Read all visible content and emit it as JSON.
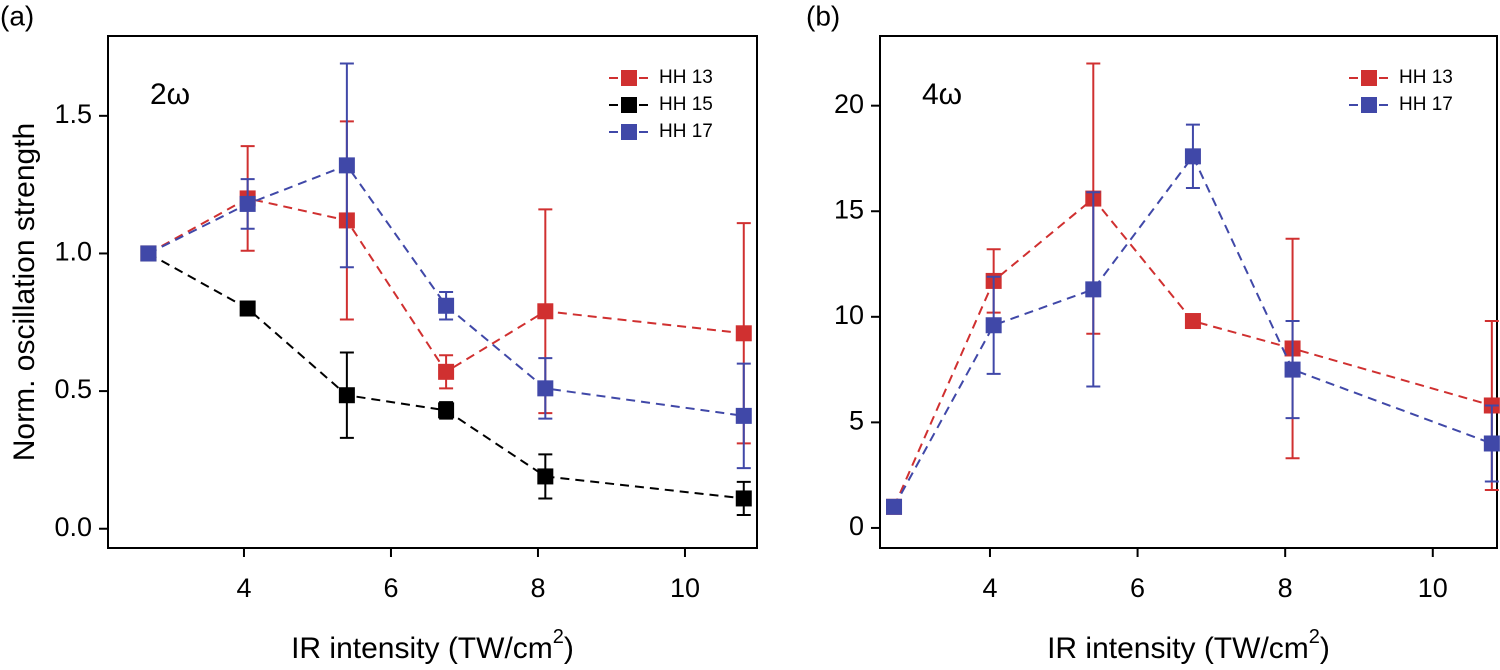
{
  "chart_data": [
    {
      "type": "line",
      "panel_label": "(a)",
      "annotation": "2ω",
      "ylabel": "Norm. oscillation strength",
      "xlabel": [
        "IR intensity (TW/cm",
        "2",
        ")"
      ],
      "x": [
        2.7,
        4.05,
        5.4,
        6.75,
        8.1,
        10.8
      ],
      "series": [
        {
          "name": "HH 13",
          "color": "#d03030",
          "values": [
            1.0,
            1.2,
            1.12,
            0.57,
            0.79,
            0.71
          ],
          "errors": [
            0,
            0.19,
            0.36,
            0.06,
            0.37,
            0.4
          ]
        },
        {
          "name": "HH 15",
          "color": "#000000",
          "values": [
            1.0,
            0.8,
            0.485,
            0.43,
            0.19,
            0.11
          ],
          "errors": [
            0,
            0,
            0.155,
            0.03,
            0.08,
            0.06
          ]
        },
        {
          "name": "HH 17",
          "color": "#4048a8",
          "values": [
            1.0,
            1.18,
            1.32,
            0.81,
            0.51,
            0.41
          ],
          "errors": [
            0,
            0.09,
            0.37,
            0.05,
            0.11,
            0.19
          ]
        }
      ],
      "xlim": [
        2.15,
        10.98
      ],
      "ylim": [
        -0.07,
        1.79
      ],
      "xticks": [
        4,
        6,
        8,
        10
      ],
      "yticks": [
        {
          "value": 0,
          "label": "0.0"
        },
        0.5,
        {
          "value": 1,
          "label": "1.0"
        },
        1.5
      ],
      "legend": "top right"
    },
    {
      "type": "line",
      "panel_label": "(b)",
      "annotation": "4ω",
      "xlabel": [
        "IR intensity (TW/cm",
        "2",
        ")"
      ],
      "x": [
        2.7,
        4.05,
        5.4,
        6.75,
        8.1,
        10.8
      ],
      "series": [
        {
          "name": "HH 13",
          "color": "#d03030",
          "values": [
            1.0,
            11.7,
            15.6,
            9.8,
            8.5,
            5.8
          ],
          "errors": [
            0,
            1.5,
            6.4,
            0.3,
            5.2,
            4.0
          ]
        },
        {
          "name": "HH 17",
          "color": "#4048a8",
          "values": [
            1.0,
            9.6,
            11.3,
            17.6,
            7.5,
            4.0
          ],
          "errors": [
            0,
            2.3,
            4.6,
            1.5,
            2.3,
            1.8
          ]
        }
      ],
      "xlim": [
        2.51,
        10.87
      ],
      "ylim": [
        -0.95,
        23.3
      ],
      "xticks": [
        4,
        6,
        8,
        10
      ],
      "yticks": [
        0,
        5,
        10,
        15,
        20
      ],
      "legend": "top right"
    }
  ]
}
